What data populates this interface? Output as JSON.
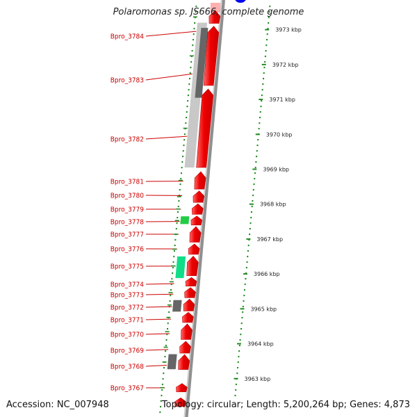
{
  "title": "Polaromonas sp. JS666, complete genome",
  "footer": {
    "accession": "Accession: NC_007948",
    "summary": "Topology: circular; Length: 5,200,264 bp; Genes: 4,873"
  },
  "colors": {
    "forward_cds": "#ee0000",
    "gene_label": "#cc0000",
    "tick": "#228b22",
    "backbone": "#909090",
    "dark_feature": "#666666",
    "light_feature": "#c8c8c8",
    "green_feature": "#22cc44",
    "teal_feature": "#11dd88",
    "top_marker": "#0000ee"
  },
  "scale_labels": [
    "3973 kbp",
    "3972 kbp",
    "3971 kbp",
    "3970 kbp",
    "3969 kbp",
    "3968 kbp",
    "3967 kbp",
    "3966 kbp",
    "3965 kbp",
    "3964 kbp",
    "3963 kbp"
  ],
  "genes": [
    {
      "label": "Bpro_3784",
      "start": 3973.55,
      "end": 3973.18
    },
    {
      "label": "Bpro_3783",
      "start": 3973.1,
      "end": 3971.4
    },
    {
      "label": "Bpro_3782",
      "start": 3971.3,
      "end": 3969.05
    },
    {
      "label": "Bpro_3781",
      "start": 3968.93,
      "end": 3968.43
    },
    {
      "label": "Bpro_3780",
      "start": 3968.38,
      "end": 3968.05
    },
    {
      "label": "Bpro_3779",
      "start": 3968.01,
      "end": 3967.71
    },
    {
      "label": "Bpro_3778",
      "start": 3967.66,
      "end": 3967.4
    },
    {
      "label": "Bpro_3777",
      "start": 3967.36,
      "end": 3966.91
    },
    {
      "label": "Bpro_3776",
      "start": 3966.86,
      "end": 3966.56
    },
    {
      "label": "Bpro_3775",
      "start": 3966.51,
      "end": 3965.95
    },
    {
      "label": "Bpro_3774",
      "start": 3965.9,
      "end": 3965.65
    },
    {
      "label": "Bpro_3773",
      "start": 3965.61,
      "end": 3965.32
    },
    {
      "label": "Bpro_3772",
      "start": 3965.28,
      "end": 3964.94
    },
    {
      "label": "Bpro_3771",
      "start": 3964.9,
      "end": 3964.61
    },
    {
      "label": "Bpro_3770",
      "start": 3964.57,
      "end": 3964.12
    },
    {
      "label": "Bpro_3769",
      "start": 3964.07,
      "end": 3963.73
    },
    {
      "label": "Bpro_3768",
      "start": 3963.69,
      "end": 3963.26
    },
    {
      "label": "Bpro_3767",
      "start": 3962.86,
      "end": 3962.62
    }
  ],
  "extra_cds": [
    {
      "start": 3962.45,
      "end": 3962.2
    }
  ],
  "inner_features": [
    {
      "color": "light_feature",
      "start": 3973.2,
      "end": 3969.05
    },
    {
      "color": "dark_feature",
      "start": 3973.05,
      "end": 3971.05
    },
    {
      "color": "green_feature",
      "start": 3967.65,
      "end": 3967.43
    },
    {
      "color": "teal_feature",
      "start": 3966.5,
      "end": 3965.88
    },
    {
      "color": "dark_feature",
      "start": 3965.25,
      "end": 3964.92
    },
    {
      "color": "dark_feature",
      "start": 3963.7,
      "end": 3963.27
    }
  ]
}
